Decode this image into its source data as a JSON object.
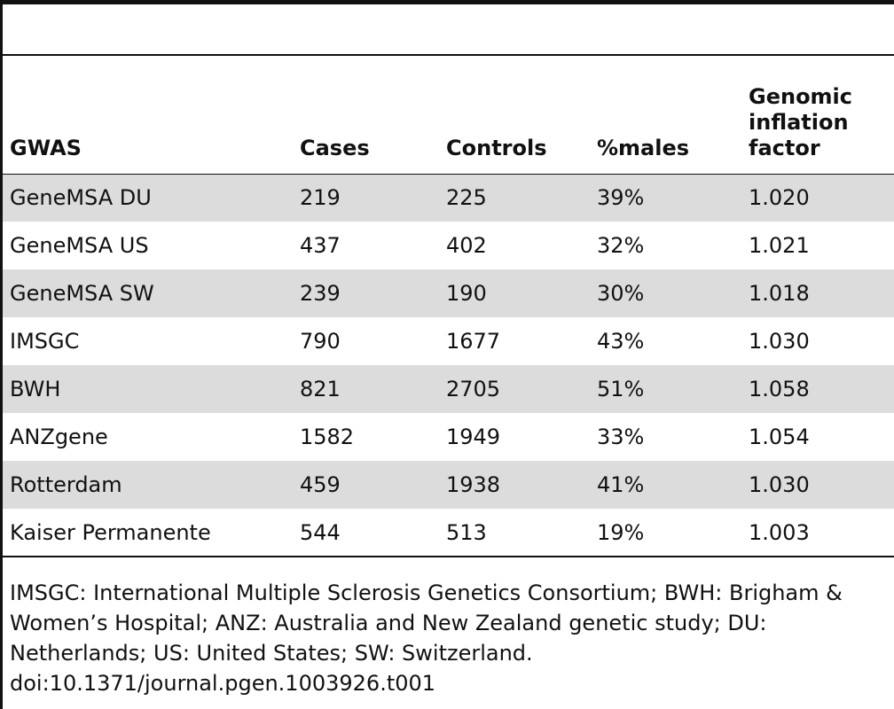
{
  "table": {
    "headers": [
      "GWAS",
      "Cases",
      "Controls",
      "%males",
      "Genomic inflation factor"
    ],
    "rows": [
      [
        "GeneMSA DU",
        "219",
        "225",
        "39%",
        "1.020"
      ],
      [
        "GeneMSA US",
        "437",
        "402",
        "32%",
        "1.021"
      ],
      [
        "GeneMSA SW",
        "239",
        "190",
        "30%",
        "1.018"
      ],
      [
        "IMSGC",
        "790",
        "1677",
        "43%",
        "1.030"
      ],
      [
        "BWH",
        "821",
        "2705",
        "51%",
        "1.058"
      ],
      [
        "ANZgene",
        "1582",
        "1949",
        "33%",
        "1.054"
      ],
      [
        "Rotterdam",
        "459",
        "1938",
        "41%",
        "1.030"
      ],
      [
        "Kaiser Permanente",
        "544",
        "513",
        "19%",
        "1.003"
      ]
    ]
  },
  "footnote": {
    "text": "IMSGC: International Multiple Sclerosis Genetics Consortium; BWH: Brigham & Women’s Hospital; ANZ: Australia and New Zealand genetic study; DU: Netherlands; US: United States; SW: Switzerland.",
    "doi": "doi:10.1371/journal.pgen.1003926.t001"
  },
  "colors": {
    "rule": "#111111",
    "stripe": "#dcdcdc",
    "background": "#ffffff"
  }
}
